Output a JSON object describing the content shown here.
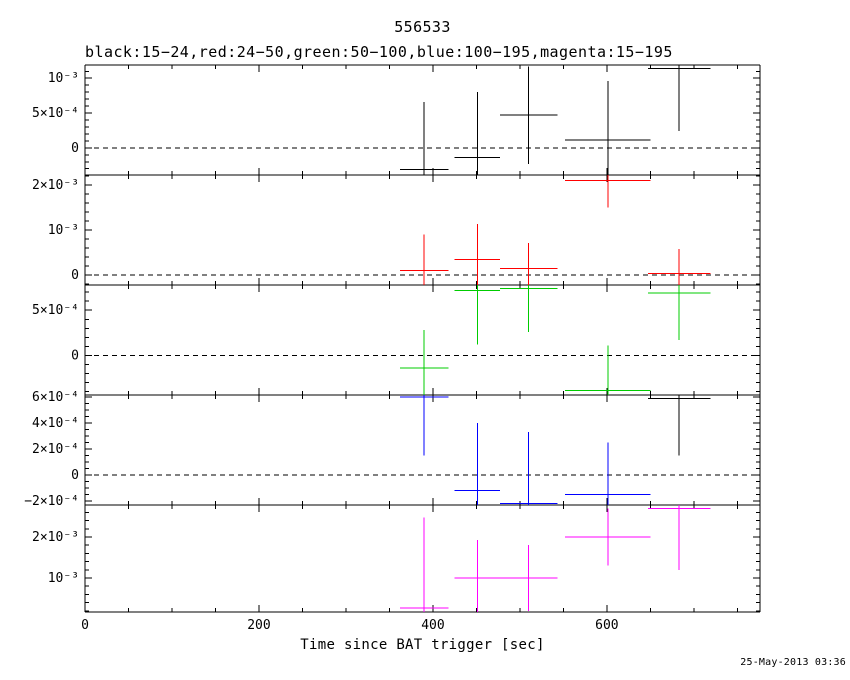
{
  "chart_data": {
    "type": "errorbar",
    "title": "556533",
    "subtitle": "black:15−24,red:24−50,green:50−100,blue:100−195,magenta:15−195",
    "xlabel": "Time since BAT trigger [sec]",
    "timestamp": "25-May-2013 03:36",
    "grid": false,
    "xlim": [
      0,
      776
    ],
    "xticks_major": [
      0,
      200,
      400,
      600
    ],
    "xtick_labels": [
      "0",
      "200",
      "400",
      "600"
    ],
    "xtick_minor_step": 50,
    "panels": [
      {
        "band": "15−24",
        "color": "#000000",
        "ylim": [
          -0.00039,
          0.00119
        ],
        "yticks": [
          0,
          0.0005,
          0.001
        ],
        "ytick_labels": [
          "0",
          "5×10⁻⁴",
          "10⁻³"
        ],
        "ytick_minor_step": 0.0001,
        "zero_line": true,
        "points": [
          {
            "x": 390,
            "xerr": 28,
            "y": -0.00031,
            "yerr": 0.00097
          },
          {
            "x": 451,
            "xerr": 26,
            "y": -0.00014,
            "yerr": 0.00094
          },
          {
            "x": 510,
            "xerr": 33,
            "y": 0.00047,
            "yerr": 0.0007
          },
          {
            "x": 601,
            "xerr": 49,
            "y": 0.00011,
            "yerr": 0.00085
          },
          {
            "x": 683,
            "xerr": 36,
            "y": 0.00114,
            "yerr": 0.0009
          }
        ]
      },
      {
        "band": "24−50",
        "color": "#ff0000",
        "ylim": [
          -0.00022,
          0.00222
        ],
        "yticks": [
          0,
          0.001,
          0.002
        ],
        "ytick_labels": [
          "0",
          "10⁻³",
          "2×10⁻³"
        ],
        "ytick_minor_step": 0.0002,
        "zero_line": true,
        "points": [
          {
            "x": 390,
            "xerr": 28,
            "y": 0.0001,
            "yerr": 0.0008
          },
          {
            "x": 451,
            "xerr": 26,
            "y": 0.00035,
            "yerr": 0.00078
          },
          {
            "x": 510,
            "xerr": 33,
            "y": 0.00015,
            "yerr": 0.00056
          },
          {
            "x": 601,
            "xerr": 49,
            "y": 0.0021,
            "yerr": 0.0006
          },
          {
            "x": 683,
            "xerr": 36,
            "y": 3e-05,
            "yerr": 0.00055
          }
        ]
      },
      {
        "band": "50−100",
        "color": "#00cc00",
        "ylim": [
          -0.00044,
          0.00078
        ],
        "yticks": [
          0,
          0.0005
        ],
        "ytick_labels": [
          "0",
          "5×10⁻⁴"
        ],
        "ytick_minor_step": 0.0001,
        "zero_line": true,
        "points": [
          {
            "x": 390,
            "xerr": 28,
            "y": -0.00014,
            "yerr": 0.00042
          },
          {
            "x": 451,
            "xerr": 26,
            "y": 0.00072,
            "yerr": 0.0006
          },
          {
            "x": 510,
            "xerr": 33,
            "y": 0.00074,
            "yerr": 0.00048
          },
          {
            "x": 601,
            "xerr": 49,
            "y": -0.00039,
            "yerr": 0.0005
          },
          {
            "x": 683,
            "xerr": 36,
            "y": 0.00069,
            "yerr": 0.00052
          }
        ]
      },
      {
        "band": "100−195",
        "color": "#0000ff",
        "ylim": [
          -0.00023,
          0.000615
        ],
        "yticks": [
          -0.0002,
          0,
          0.0002,
          0.0004,
          0.0006
        ],
        "ytick_labels": [
          "−2×10⁻⁴",
          "0",
          "2×10⁻⁴",
          "4×10⁻⁴",
          "6×10⁻⁴"
        ],
        "ytick_minor_step": 5e-05,
        "zero_line": true,
        "points": [
          {
            "x": 390,
            "xerr": 28,
            "y": 0.0006,
            "yerr": 0.00045
          },
          {
            "x": 451,
            "xerr": 26,
            "y": -0.00012,
            "yerr": 0.00052
          },
          {
            "x": 510,
            "xerr": 33,
            "y": -0.00022,
            "yerr": 0.00055
          },
          {
            "x": 601,
            "xerr": 49,
            "y": -0.00015,
            "yerr": 0.0004
          },
          {
            "x": 683,
            "xerr": 36,
            "y": 0.00059,
            "yerr": 0.00044,
            "color": "#000000"
          }
        ]
      },
      {
        "band": "15−195",
        "color": "#ff00ff",
        "ylim": [
          0.00017,
          0.00278
        ],
        "yticks": [
          0.001,
          0.002
        ],
        "ytick_labels": [
          "10⁻³",
          "2×10⁻³"
        ],
        "ytick_minor_step": 0.0002,
        "zero_line": false,
        "points": [
          {
            "x": 390,
            "xerr": 28,
            "y": 0.00027,
            "yerr": 0.0022
          },
          {
            "x": 451,
            "xerr": 26,
            "y": 0.001,
            "yerr": 0.00093
          },
          {
            "x": 510,
            "xerr": 33,
            "y": 0.001,
            "yerr": 0.0008
          },
          {
            "x": 601,
            "xerr": 49,
            "y": 0.002,
            "yerr": 0.0007
          },
          {
            "x": 683,
            "xerr": 36,
            "y": 0.0027,
            "yerr": 0.0015
          }
        ]
      }
    ]
  }
}
